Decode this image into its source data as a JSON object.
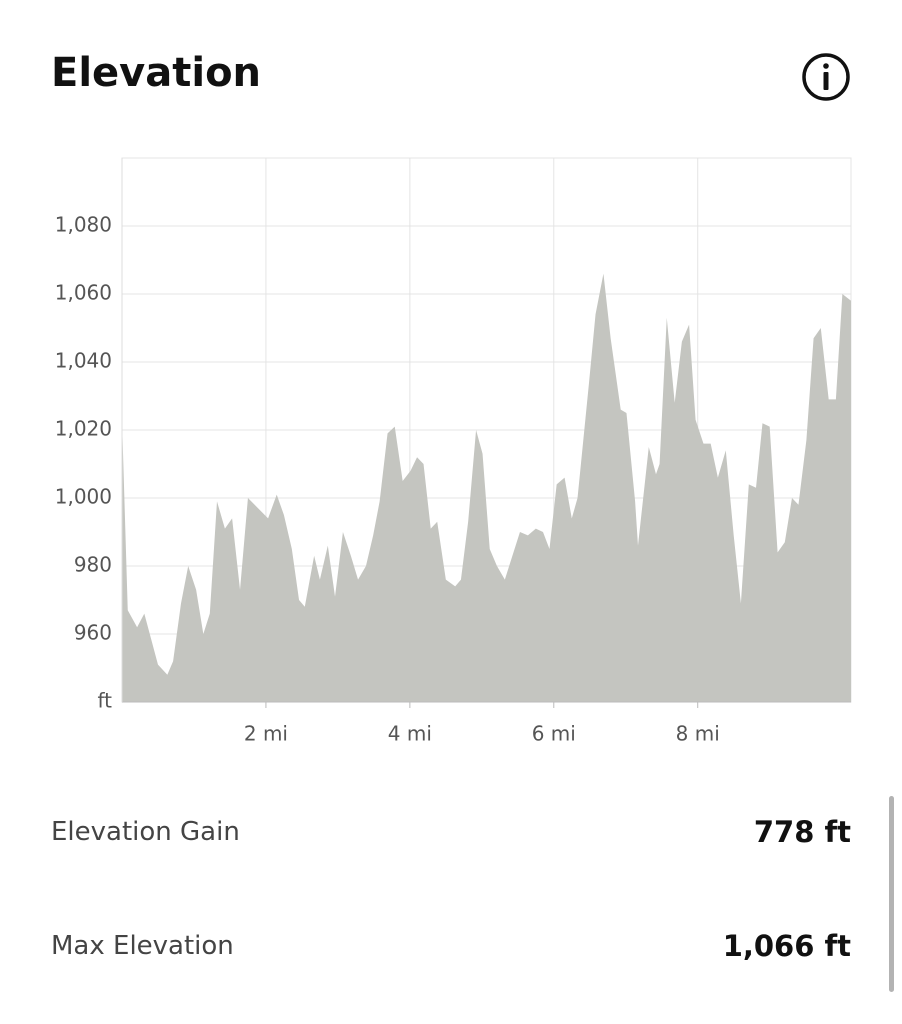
{
  "header": {
    "title": "Elevation"
  },
  "chart_data": {
    "type": "area",
    "color": "#c4c5c0",
    "grid": true,
    "x": [
      0,
      0.08,
      0.21,
      0.31,
      0.5,
      0.63,
      0.71,
      0.82,
      0.92,
      1.03,
      1.13,
      1.22,
      1.32,
      1.43,
      1.53,
      1.64,
      1.75,
      2.03,
      2.15,
      2.25,
      2.36,
      2.46,
      2.54,
      2.67,
      2.75,
      2.86,
      2.96,
      3.07,
      3.18,
      3.28,
      3.39,
      3.49,
      3.58,
      3.69,
      3.79,
      3.9,
      4.01,
      4.1,
      4.19,
      4.29,
      4.38,
      4.5,
      4.63,
      4.71,
      4.81,
      4.92,
      5.01,
      5.11,
      5.21,
      5.32,
      5.53,
      5.64,
      5.75,
      5.85,
      5.94,
      6.04,
      6.15,
      6.25,
      6.33,
      6.49,
      6.58,
      6.69,
      6.79,
      6.93,
      7.01,
      7.13,
      7.17,
      7.32,
      7.42,
      7.47,
      7.57,
      7.68,
      7.78,
      7.88,
      7.97,
      8.08,
      8.18,
      8.28,
      8.39,
      8.5,
      8.6,
      8.71,
      8.81,
      8.9,
      9.0,
      9.11,
      9.21,
      9.31,
      9.4,
      9.51,
      9.61,
      9.71,
      9.82,
      9.92,
      10.01,
      10.13
    ],
    "values": [
      1023,
      967,
      962,
      966,
      951,
      948,
      952,
      969,
      980,
      973,
      960,
      966,
      999,
      991,
      994,
      973,
      1000,
      994,
      1001,
      995,
      985,
      970,
      968,
      983,
      976,
      986,
      971,
      990,
      983,
      976,
      980,
      989,
      999,
      1019,
      1021,
      1005,
      1008,
      1012,
      1010,
      991,
      993,
      976,
      974,
      976,
      993,
      1020,
      1013,
      985,
      980,
      976,
      990,
      989,
      991,
      990,
      985,
      1004,
      1006,
      994,
      1000,
      1034,
      1054,
      1066,
      1047,
      1026,
      1025,
      999,
      986,
      1015,
      1007,
      1010,
      1053,
      1028,
      1046,
      1051,
      1023,
      1016,
      1016,
      1006,
      1014,
      989,
      969,
      1004,
      1003,
      1022,
      1021,
      984,
      987,
      1000,
      998,
      1017,
      1047,
      1050,
      1029,
      1029,
      1060,
      1058
    ],
    "xlim": [
      0,
      10.13
    ],
    "ylim": [
      940,
      1100
    ],
    "xticks": [
      {
        "value": 2,
        "label": "2 mi"
      },
      {
        "value": 4,
        "label": "4 mi"
      },
      {
        "value": 6,
        "label": "6 mi"
      },
      {
        "value": 8,
        "label": "8 mi"
      }
    ],
    "yticks": [
      {
        "value": 940,
        "label": "ft"
      },
      {
        "value": 960,
        "label": "960"
      },
      {
        "value": 980,
        "label": "980"
      },
      {
        "value": 1000,
        "label": "1,000"
      },
      {
        "value": 1020,
        "label": "1,020"
      },
      {
        "value": 1040,
        "label": "1,040"
      },
      {
        "value": 1060,
        "label": "1,060"
      },
      {
        "value": 1080,
        "label": "1,080"
      }
    ]
  },
  "stats": [
    {
      "label": "Elevation Gain",
      "value": "778 ft"
    },
    {
      "label": "Max Elevation",
      "value": "1,066 ft"
    }
  ]
}
